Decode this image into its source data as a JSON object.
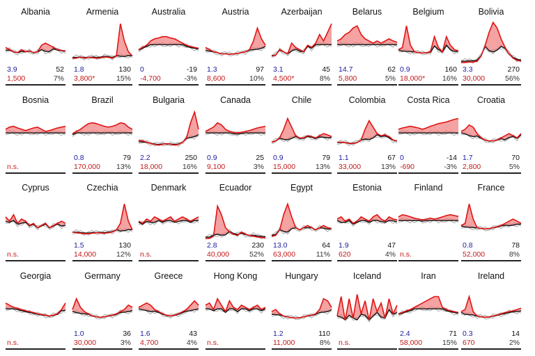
{
  "colors": {
    "excess": "#e01414",
    "baseline": "#111111",
    "past_years": "#a8a8a8",
    "fill": "#f07a7a",
    "left_value": "#1a1a9a",
    "excess_text": "#c41818"
  },
  "chart_data": {
    "type": "line",
    "panels": [
      {
        "country": "Albania",
        "left_value": "3.9",
        "right_value": "52",
        "excess": "1,500",
        "percent": "7%",
        "shape": [
          0.4,
          0.35,
          0.3,
          0.28,
          0.35,
          0.3,
          0.32,
          0.28,
          0.3,
          0.45,
          0.5,
          0.45,
          0.4,
          0.35,
          0.33,
          0.32
        ]
      },
      {
        "country": "Armenia",
        "left_value": "1.8",
        "right_value": "130",
        "excess": "3,800*",
        "percent": "15%",
        "shape": [
          0.15,
          0.15,
          0.18,
          0.15,
          0.17,
          0.16,
          0.15,
          0.16,
          0.18,
          0.17,
          0.15,
          0.2,
          0.95,
          0.55,
          0.3,
          0.2
        ]
      },
      {
        "country": "Australia",
        "left_value": "0",
        "right_value": "-19",
        "excess": "-4,700",
        "percent": "-3%",
        "shape": [
          0.35,
          0.4,
          0.45,
          0.55,
          0.6,
          0.62,
          0.65,
          0.65,
          0.62,
          0.6,
          0.55,
          0.5,
          0.45,
          0.42,
          0.4,
          0.38
        ]
      },
      {
        "country": "Austria",
        "left_value": "1.3",
        "right_value": "97",
        "excess": "8,600",
        "percent": "10%",
        "shape": [
          0.4,
          0.35,
          0.3,
          0.28,
          0.25,
          0.25,
          0.24,
          0.25,
          0.26,
          0.28,
          0.3,
          0.35,
          0.55,
          0.85,
          0.6,
          0.45
        ]
      },
      {
        "country": "Azerbaijan",
        "left_value": "3.1",
        "right_value": "45",
        "excess": "4,500*",
        "percent": "8%",
        "shape": [
          0.2,
          0.22,
          0.35,
          0.3,
          0.25,
          0.5,
          0.4,
          0.35,
          0.3,
          0.45,
          0.4,
          0.5,
          0.7,
          0.55,
          0.75,
          0.95
        ]
      },
      {
        "country": "Belarus",
        "left_value": "14.7",
        "right_value": "62",
        "excess": "5,800",
        "percent": "5%",
        "shape": [
          0.55,
          0.6,
          0.7,
          0.75,
          0.85,
          0.9,
          0.7,
          0.6,
          0.55,
          0.5,
          0.55,
          0.5,
          0.55,
          0.6,
          0.55,
          0.52
        ]
      },
      {
        "country": "Belgium",
        "left_value": "0.9",
        "right_value": "160",
        "excess": "18,000*",
        "percent": "16%",
        "shape": [
          0.35,
          0.4,
          0.9,
          0.45,
          0.3,
          0.28,
          0.27,
          0.28,
          0.3,
          0.65,
          0.4,
          0.3,
          0.65,
          0.45,
          0.35,
          0.32
        ]
      },
      {
        "country": "Bolivia",
        "left_value": "3.3",
        "right_value": "270",
        "excess": "30,000",
        "percent": "56%",
        "shape": [
          0.05,
          0.05,
          0.06,
          0.06,
          0.08,
          0.2,
          0.45,
          0.75,
          0.98,
          0.85,
          0.6,
          0.4,
          0.25,
          0.15,
          0.1,
          0.08
        ]
      },
      {
        "country": "Bosnia",
        "left_value": "",
        "right_value": "",
        "excess": "n.s.",
        "percent": "",
        "shape": [
          0.55,
          0.6,
          0.62,
          0.58,
          0.55,
          0.52,
          0.55,
          0.58,
          0.6,
          0.55,
          0.5,
          0.52,
          0.55,
          0.58,
          0.6,
          0.62
        ]
      },
      {
        "country": "Brazil",
        "left_value": "0.8",
        "right_value": "79",
        "excess": "170,000",
        "percent": "13%",
        "shape": [
          0.45,
          0.5,
          0.55,
          0.62,
          0.68,
          0.7,
          0.68,
          0.65,
          0.62,
          0.6,
          0.62,
          0.65,
          0.7,
          0.68,
          0.6,
          0.55
        ]
      },
      {
        "country": "Bulgaria",
        "left_value": "2.2",
        "right_value": "250",
        "excess": "18,000",
        "percent": "16%",
        "shape": [
          0.3,
          0.28,
          0.25,
          0.22,
          0.2,
          0.18,
          0.2,
          0.22,
          0.2,
          0.18,
          0.2,
          0.25,
          0.35,
          0.7,
          0.95,
          0.55
        ]
      },
      {
        "country": "Canada",
        "left_value": "0.9",
        "right_value": "25",
        "excess": "9,100",
        "percent": "3%",
        "shape": [
          0.5,
          0.55,
          0.6,
          0.7,
          0.65,
          0.55,
          0.5,
          0.48,
          0.47,
          0.48,
          0.5,
          0.52,
          0.55,
          0.58,
          0.6,
          0.62
        ]
      },
      {
        "country": "Chile",
        "left_value": "0.9",
        "right_value": "79",
        "excess": "15,000",
        "percent": "13%",
        "shape": [
          0.25,
          0.28,
          0.35,
          0.55,
          0.8,
          0.6,
          0.4,
          0.35,
          0.35,
          0.4,
          0.38,
          0.35,
          0.4,
          0.45,
          0.42,
          0.38
        ]
      },
      {
        "country": "Colombia",
        "left_value": "1.1",
        "right_value": "67",
        "excess": "33,000",
        "percent": "13%",
        "shape": [
          0.25,
          0.25,
          0.24,
          0.22,
          0.22,
          0.24,
          0.3,
          0.55,
          0.75,
          0.6,
          0.45,
          0.4,
          0.42,
          0.38,
          0.3,
          0.28
        ]
      },
      {
        "country": "Costa Rica",
        "left_value": "0",
        "right_value": "-14",
        "excess": "-690",
        "percent": "-3%",
        "shape": [
          0.55,
          0.58,
          0.6,
          0.62,
          0.6,
          0.58,
          0.55,
          0.58,
          0.62,
          0.65,
          0.68,
          0.7,
          0.72,
          0.75,
          0.78,
          0.8
        ]
      },
      {
        "country": "Croatia",
        "left_value": "1.7",
        "right_value": "70",
        "excess": "2,800",
        "percent": "5%",
        "shape": [
          0.5,
          0.55,
          0.65,
          0.6,
          0.45,
          0.35,
          0.3,
          0.28,
          0.28,
          0.3,
          0.35,
          0.4,
          0.45,
          0.4,
          0.35,
          0.45
        ]
      },
      {
        "country": "Cyprus",
        "left_value": "",
        "right_value": "",
        "excess": "n.s.",
        "percent": "",
        "shape": [
          0.55,
          0.45,
          0.6,
          0.4,
          0.5,
          0.45,
          0.35,
          0.4,
          0.3,
          0.35,
          0.4,
          0.3,
          0.35,
          0.4,
          0.45,
          0.4
        ]
      },
      {
        "country": "Czechia",
        "left_value": "1.5",
        "right_value": "130",
        "excess": "14,000",
        "percent": "12%",
        "shape": [
          0.2,
          0.18,
          0.17,
          0.16,
          0.16,
          0.17,
          0.18,
          0.18,
          0.17,
          0.18,
          0.2,
          0.25,
          0.4,
          0.85,
          0.45,
          0.25
        ]
      },
      {
        "country": "Denmark",
        "left_value": "",
        "right_value": "",
        "excess": "n.s.",
        "percent": "",
        "shape": [
          0.45,
          0.4,
          0.5,
          0.45,
          0.55,
          0.5,
          0.45,
          0.5,
          0.55,
          0.45,
          0.5,
          0.55,
          0.5,
          0.45,
          0.5,
          0.55
        ]
      },
      {
        "country": "Ecuador",
        "left_value": "2.8",
        "right_value": "230",
        "excess": "40,000",
        "percent": "52%",
        "shape": [
          0.05,
          0.05,
          0.1,
          0.8,
          0.6,
          0.3,
          0.2,
          0.15,
          0.12,
          0.2,
          0.15,
          0.12,
          0.1,
          0.08,
          0.07,
          0.06
        ]
      },
      {
        "country": "Egypt",
        "left_value": "13.0",
        "right_value": "64",
        "excess": "63,000",
        "percent": "11%",
        "shape": [
          0.1,
          0.12,
          0.25,
          0.6,
          0.85,
          0.55,
          0.3,
          0.25,
          0.3,
          0.35,
          0.3,
          0.25,
          0.3,
          0.35,
          0.3,
          0.28
        ]
      },
      {
        "country": "Estonia",
        "left_value": "1.9",
        "right_value": "47",
        "excess": "620",
        "percent": "4%",
        "shape": [
          0.5,
          0.55,
          0.45,
          0.5,
          0.4,
          0.45,
          0.55,
          0.5,
          0.45,
          0.55,
          0.6,
          0.5,
          0.45,
          0.55,
          0.5,
          0.48
        ]
      },
      {
        "country": "Finland",
        "left_value": "",
        "right_value": "",
        "excess": "n.s.",
        "percent": "",
        "shape": [
          0.55,
          0.6,
          0.58,
          0.55,
          0.52,
          0.5,
          0.48,
          0.5,
          0.52,
          0.5,
          0.52,
          0.55,
          0.58,
          0.6,
          0.58,
          0.56
        ]
      },
      {
        "country": "France",
        "left_value": "0.8",
        "right_value": "78",
        "excess": "52,000",
        "percent": "8%",
        "shape": [
          0.35,
          0.4,
          0.85,
          0.5,
          0.3,
          0.28,
          0.27,
          0.28,
          0.3,
          0.32,
          0.35,
          0.4,
          0.45,
          0.5,
          0.45,
          0.4
        ]
      },
      {
        "country": "Georgia",
        "left_value": "",
        "right_value": "",
        "excess": "n.s.",
        "percent": "",
        "shape": [
          0.6,
          0.55,
          0.5,
          0.48,
          0.45,
          0.42,
          0.4,
          0.38,
          0.35,
          0.33,
          0.32,
          0.3,
          0.32,
          0.35,
          0.45,
          0.6
        ]
      },
      {
        "country": "Germany",
        "left_value": "1.0",
        "right_value": "36",
        "excess": "30,000",
        "percent": "3%",
        "shape": [
          0.45,
          0.7,
          0.5,
          0.4,
          0.35,
          0.3,
          0.28,
          0.27,
          0.28,
          0.3,
          0.32,
          0.35,
          0.4,
          0.45,
          0.55,
          0.5
        ]
      },
      {
        "country": "Greece",
        "left_value": "1.6",
        "right_value": "43",
        "excess": "4,700",
        "percent": "4%",
        "shape": [
          0.5,
          0.55,
          0.6,
          0.55,
          0.45,
          0.4,
          0.35,
          0.32,
          0.3,
          0.32,
          0.35,
          0.4,
          0.45,
          0.55,
          0.65,
          0.55
        ]
      },
      {
        "country": "Hong Kong",
        "left_value": "",
        "right_value": "",
        "excess": "n.s.",
        "percent": "",
        "shape": [
          0.55,
          0.6,
          0.45,
          0.7,
          0.55,
          0.4,
          0.65,
          0.5,
          0.45,
          0.55,
          0.5,
          0.45,
          0.5,
          0.55,
          0.45,
          0.5
        ]
      },
      {
        "country": "Hungary",
        "left_value": "1.2",
        "right_value": "110",
        "excess": "11,000",
        "percent": "8%",
        "shape": [
          0.4,
          0.45,
          0.35,
          0.3,
          0.28,
          0.26,
          0.25,
          0.26,
          0.28,
          0.3,
          0.32,
          0.35,
          0.45,
          0.7,
          0.65,
          0.5
        ]
      },
      {
        "country": "Iceland",
        "left_value": "",
        "right_value": "",
        "excess": "n.s.",
        "percent": "",
        "shape": [
          0.3,
          0.75,
          0.2,
          0.7,
          0.25,
          0.8,
          0.35,
          0.65,
          0.2,
          0.7,
          0.4,
          0.6,
          0.25,
          0.7,
          0.35,
          0.55
        ]
      },
      {
        "country": "Iran",
        "left_value": "2.4",
        "right_value": "71",
        "excess": "58,000",
        "percent": "15%",
        "shape": [
          0.35,
          0.38,
          0.42,
          0.45,
          0.5,
          0.55,
          0.6,
          0.65,
          0.7,
          0.75,
          0.75,
          0.5,
          0.45,
          0.42,
          0.4,
          0.38
        ]
      },
      {
        "country": "Ireland",
        "left_value": "0.3",
        "right_value": "14",
        "excess": "670",
        "percent": "2%",
        "shape": [
          0.4,
          0.45,
          0.75,
          0.4,
          0.3,
          0.28,
          0.27,
          0.28,
          0.3,
          0.32,
          0.35,
          0.38,
          0.4,
          0.42,
          0.45,
          0.48
        ]
      }
    ]
  }
}
